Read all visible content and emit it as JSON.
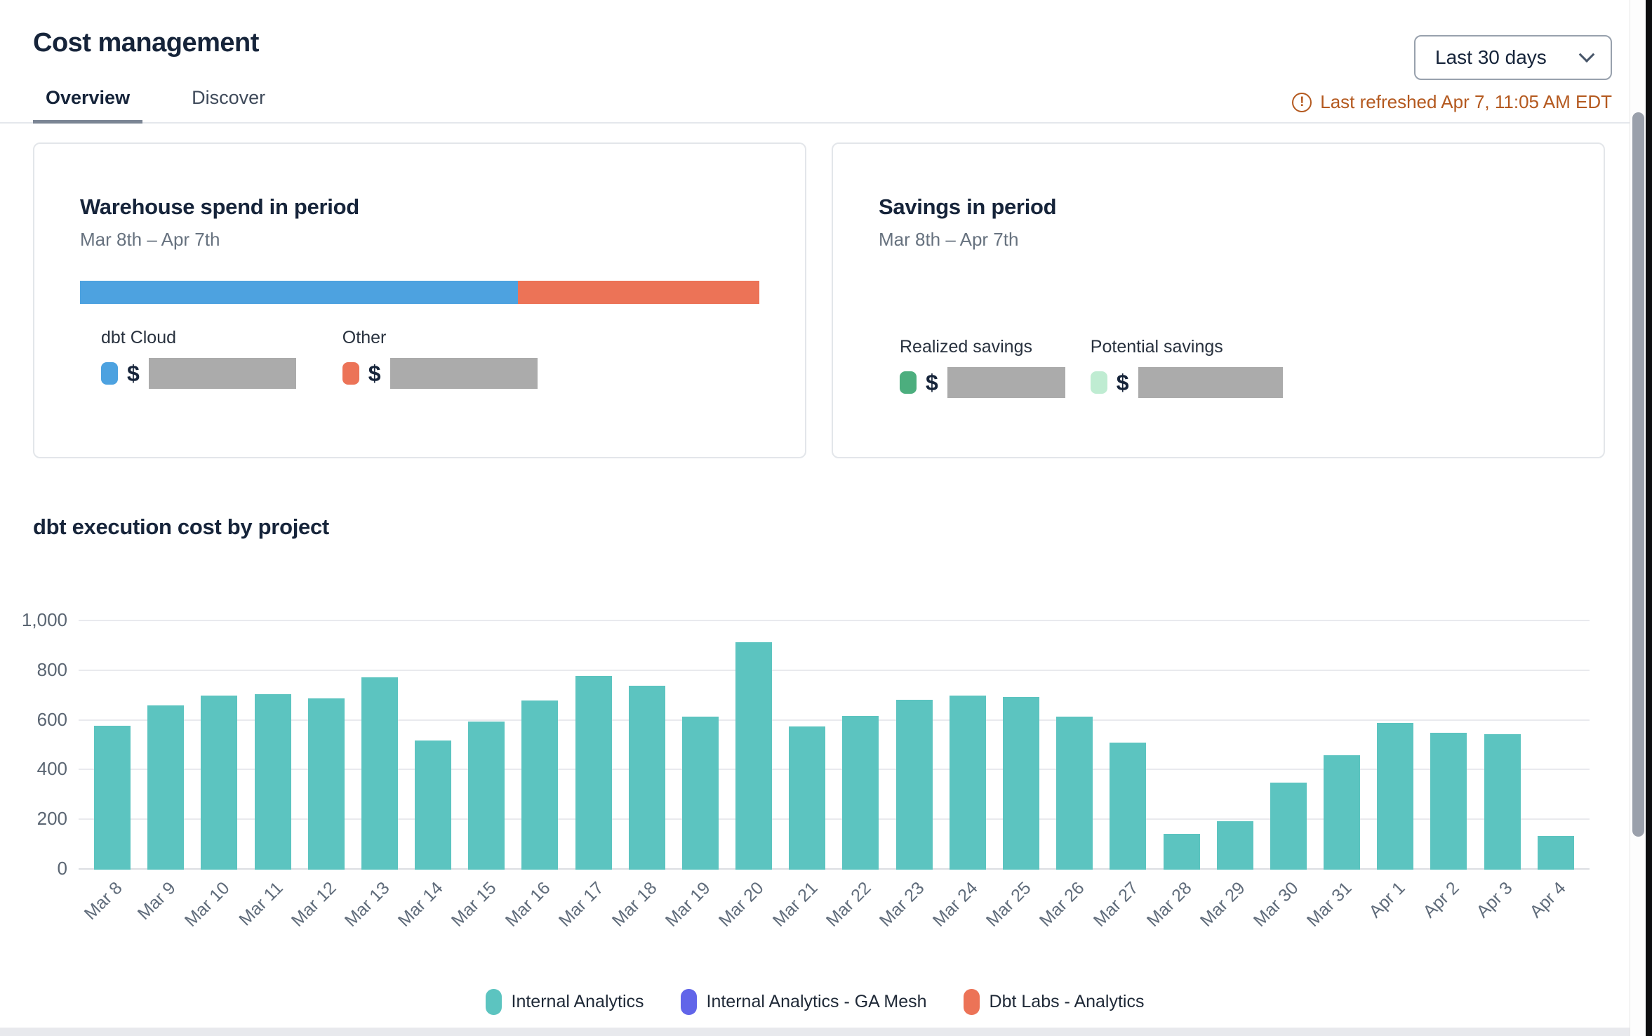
{
  "header": {
    "title": "Cost management",
    "tabs": [
      {
        "label": "Overview",
        "active": true
      },
      {
        "label": "Discover",
        "active": false
      }
    ],
    "date_range": {
      "value": "Last 30 days"
    },
    "last_refreshed": "Last refreshed Apr 7, 11:05 AM EDT"
  },
  "icons": {
    "date_range": "chevron-down",
    "refresh_status": "alert-circle"
  },
  "colors": {
    "dbt_cloud_blue": "#4da2e0",
    "other_coral": "#ec7357",
    "realized_green": "#4cae7e",
    "potential_mint": "#bfecd2",
    "internal_analytics_teal": "#5cc4c0",
    "ga_mesh_purple": "#6165e9",
    "refresh_warning": "#b4591f",
    "redaction_gray": "#ababab"
  },
  "warehouse_card": {
    "title": "Warehouse spend in period",
    "subtitle": "Mar 8th – Apr 7th",
    "stacked_bar": [
      {
        "name": "dbt Cloud",
        "color": "#4da2e0",
        "percent": 64.5
      },
      {
        "name": "Other",
        "color": "#ec7357",
        "percent": 35.5
      }
    ],
    "legend": [
      {
        "label": "dbt Cloud",
        "color": "#4da2e0",
        "currency": "$",
        "value_redacted": true
      },
      {
        "label": "Other",
        "color": "#ec7357",
        "currency": "$",
        "value_redacted": true
      }
    ]
  },
  "savings_card": {
    "title": "Savings in period",
    "subtitle": "Mar 8th – Apr 7th",
    "legend": [
      {
        "label": "Realized savings",
        "color": "#4cae7e",
        "currency": "$",
        "value_redacted": true
      },
      {
        "label": "Potential savings",
        "color": "#bfecd2",
        "currency": "$",
        "value_redacted": true
      }
    ]
  },
  "chart_section": {
    "title": "dbt execution cost by project"
  },
  "chart_data": {
    "type": "bar",
    "title": "dbt execution cost by project",
    "x": [
      "Mar 8",
      "Mar 9",
      "Mar 10",
      "Mar 11",
      "Mar 12",
      "Mar 13",
      "Mar 14",
      "Mar 15",
      "Mar 16",
      "Mar 17",
      "Mar 18",
      "Mar 19",
      "Mar 20",
      "Mar 21",
      "Mar 22",
      "Mar 23",
      "Mar 24",
      "Mar 25",
      "Mar 26",
      "Mar 27",
      "Mar 28",
      "Mar 29",
      "Mar 30",
      "Mar 31",
      "Apr 1",
      "Apr 2",
      "Apr 3",
      "Apr 4"
    ],
    "series": [
      {
        "name": "Internal Analytics",
        "color": "#5cc4c0",
        "values": [
          580,
          660,
          700,
          705,
          690,
          775,
          520,
          595,
          680,
          780,
          740,
          615,
          915,
          575,
          620,
          685,
          700,
          695,
          615,
          510,
          145,
          195,
          350,
          460,
          590,
          550,
          545,
          135
        ]
      },
      {
        "name": "Internal Analytics - GA Mesh",
        "color": "#6165e9",
        "values": [
          0,
          0,
          0,
          0,
          0,
          0,
          0,
          0,
          0,
          0,
          0,
          0,
          0,
          0,
          0,
          0,
          0,
          0,
          0,
          0,
          0,
          0,
          0,
          0,
          0,
          0,
          0,
          0
        ]
      },
      {
        "name": "Dbt Labs - Analytics",
        "color": "#ec7357",
        "values": [
          0,
          0,
          0,
          0,
          0,
          0,
          0,
          0,
          0,
          0,
          0,
          0,
          0,
          0,
          0,
          0,
          0,
          0,
          0,
          0,
          0,
          0,
          0,
          0,
          0,
          0,
          0,
          0
        ]
      }
    ],
    "ylim": [
      0,
      1000
    ],
    "yticks": [
      {
        "v": 0,
        "label": "0"
      },
      {
        "v": 200,
        "label": "200"
      },
      {
        "v": 400,
        "label": "400"
      },
      {
        "v": 600,
        "label": "600"
      },
      {
        "v": 800,
        "label": "800"
      },
      {
        "v": 1000,
        "label": "1,000"
      }
    ],
    "grid": true,
    "legend_position": "bottom"
  }
}
